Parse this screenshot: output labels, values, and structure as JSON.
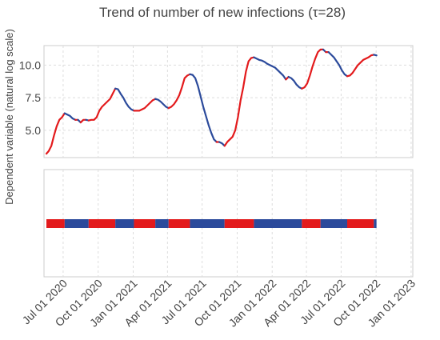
{
  "chart_data": {
    "type": "line",
    "title": "Trend of number of new infections (τ=28)",
    "ylabel": "Dependent variable (natural log scale)",
    "xlabel": "",
    "x_ticks": [
      "2020-07-01",
      "2020-10-01",
      "2021-01-01",
      "2021-04-01",
      "2021-07-01",
      "2021-10-01",
      "2022-01-01",
      "2022-04-01",
      "2022-07-01",
      "2022-10-01",
      "2023-01-01"
    ],
    "x_tick_labels": [
      "Jul 01 2020",
      "Oct 01 2020",
      "Jan 01 2021",
      "Apr 01 2021",
      "Jul 01 2021",
      "Oct 01 2021",
      "Jan 01 2022",
      "Apr 01 2022",
      "Jul 01 2022",
      "Oct 01 2022",
      "Jan 01 2023"
    ],
    "y_ticks": [
      5.0,
      7.5,
      10.0
    ],
    "y_tick_labels": [
      "5.0",
      "7.5",
      "10.0"
    ],
    "xlim": [
      "2020-05-18",
      "2022-12-30"
    ],
    "ylim": [
      2.9,
      11.5
    ],
    "grid": true,
    "colors": {
      "increasing": "#e31a1c",
      "decreasing": "#2b4a9b",
      "grid": "#dddddd",
      "frame": "#cccccc"
    },
    "series": [
      {
        "points": [
          [
            "2020-05-18",
            3.2
          ],
          [
            "2020-05-24",
            3.4
          ],
          [
            "2020-05-31",
            3.8
          ],
          [
            "2020-06-07",
            4.6
          ],
          [
            "2020-06-14",
            5.3
          ],
          [
            "2020-06-21",
            5.8
          ],
          [
            "2020-06-28",
            6.0
          ],
          [
            "2020-07-05",
            6.3
          ],
          [
            "2020-07-12",
            6.2
          ],
          [
            "2020-07-19",
            6.1
          ],
          [
            "2020-07-26",
            5.9
          ],
          [
            "2020-08-02",
            5.8
          ],
          [
            "2020-08-09",
            5.8
          ],
          [
            "2020-08-16",
            5.6
          ],
          [
            "2020-08-23",
            5.8
          ],
          [
            "2020-08-30",
            5.8
          ],
          [
            "2020-09-06",
            5.75
          ],
          [
            "2020-09-13",
            5.8
          ],
          [
            "2020-09-20",
            5.8
          ],
          [
            "2020-09-27",
            6.0
          ],
          [
            "2020-10-04",
            6.5
          ],
          [
            "2020-10-11",
            6.8
          ],
          [
            "2020-10-18",
            7.0
          ],
          [
            "2020-10-25",
            7.2
          ],
          [
            "2020-11-01",
            7.4
          ],
          [
            "2020-11-08",
            7.8
          ],
          [
            "2020-11-15",
            8.2
          ],
          [
            "2020-11-22",
            8.15
          ],
          [
            "2020-11-29",
            7.8
          ],
          [
            "2020-12-06",
            7.5
          ],
          [
            "2020-12-13",
            7.1
          ],
          [
            "2020-12-20",
            6.8
          ],
          [
            "2020-12-27",
            6.6
          ],
          [
            "2021-01-03",
            6.5
          ],
          [
            "2021-01-10",
            6.5
          ],
          [
            "2021-01-17",
            6.5
          ],
          [
            "2021-01-24",
            6.6
          ],
          [
            "2021-01-31",
            6.7
          ],
          [
            "2021-02-07",
            6.9
          ],
          [
            "2021-02-14",
            7.1
          ],
          [
            "2021-02-21",
            7.3
          ],
          [
            "2021-02-28",
            7.4
          ],
          [
            "2021-03-07",
            7.35
          ],
          [
            "2021-03-14",
            7.2
          ],
          [
            "2021-03-21",
            7.0
          ],
          [
            "2021-03-28",
            6.8
          ],
          [
            "2021-04-04",
            6.7
          ],
          [
            "2021-04-11",
            6.8
          ],
          [
            "2021-04-18",
            7.0
          ],
          [
            "2021-04-25",
            7.3
          ],
          [
            "2021-05-02",
            7.7
          ],
          [
            "2021-05-09",
            8.3
          ],
          [
            "2021-05-16",
            9.0
          ],
          [
            "2021-05-23",
            9.2
          ],
          [
            "2021-05-30",
            9.3
          ],
          [
            "2021-06-06",
            9.25
          ],
          [
            "2021-06-13",
            9.0
          ],
          [
            "2021-06-20",
            8.4
          ],
          [
            "2021-06-27",
            7.6
          ],
          [
            "2021-07-04",
            6.8
          ],
          [
            "2021-07-11",
            6.1
          ],
          [
            "2021-07-18",
            5.4
          ],
          [
            "2021-07-25",
            4.8
          ],
          [
            "2021-08-01",
            4.3
          ],
          [
            "2021-08-08",
            4.1
          ],
          [
            "2021-08-15",
            4.1
          ],
          [
            "2021-08-22",
            4.0
          ],
          [
            "2021-08-29",
            3.8
          ],
          [
            "2021-09-05",
            4.1
          ],
          [
            "2021-09-12",
            4.3
          ],
          [
            "2021-09-19",
            4.5
          ],
          [
            "2021-09-26",
            5.0
          ],
          [
            "2021-10-03",
            6.0
          ],
          [
            "2021-10-10",
            7.3
          ],
          [
            "2021-10-17",
            8.3
          ],
          [
            "2021-10-24",
            9.5
          ],
          [
            "2021-10-31",
            10.3
          ],
          [
            "2021-11-07",
            10.55
          ],
          [
            "2021-11-14",
            10.6
          ],
          [
            "2021-11-21",
            10.5
          ],
          [
            "2021-11-28",
            10.4
          ],
          [
            "2021-12-05",
            10.35
          ],
          [
            "2021-12-12",
            10.25
          ],
          [
            "2021-12-19",
            10.1
          ],
          [
            "2021-12-26",
            10.0
          ],
          [
            "2022-01-02",
            9.9
          ],
          [
            "2022-01-09",
            9.8
          ],
          [
            "2022-01-16",
            9.6
          ],
          [
            "2022-01-23",
            9.4
          ],
          [
            "2022-01-30",
            9.2
          ],
          [
            "2022-02-06",
            8.9
          ],
          [
            "2022-02-13",
            9.1
          ],
          [
            "2022-02-20",
            9.0
          ],
          [
            "2022-02-27",
            8.8
          ],
          [
            "2022-03-06",
            8.5
          ],
          [
            "2022-03-13",
            8.3
          ],
          [
            "2022-03-20",
            8.2
          ],
          [
            "2022-03-27",
            8.3
          ],
          [
            "2022-04-03",
            8.6
          ],
          [
            "2022-04-10",
            9.2
          ],
          [
            "2022-04-17",
            9.9
          ],
          [
            "2022-04-24",
            10.5
          ],
          [
            "2022-05-01",
            11.0
          ],
          [
            "2022-05-08",
            11.2
          ],
          [
            "2022-05-15",
            11.2
          ],
          [
            "2022-05-22",
            11.0
          ],
          [
            "2022-05-29",
            11.0
          ],
          [
            "2022-06-05",
            10.8
          ],
          [
            "2022-06-12",
            10.6
          ],
          [
            "2022-06-19",
            10.3
          ],
          [
            "2022-06-26",
            10.0
          ],
          [
            "2022-07-03",
            9.6
          ],
          [
            "2022-07-10",
            9.3
          ],
          [
            "2022-07-17",
            9.15
          ],
          [
            "2022-07-24",
            9.2
          ],
          [
            "2022-07-31",
            9.4
          ],
          [
            "2022-08-07",
            9.7
          ],
          [
            "2022-08-14",
            10.0
          ],
          [
            "2022-08-21",
            10.2
          ],
          [
            "2022-08-28",
            10.4
          ],
          [
            "2022-09-04",
            10.5
          ],
          [
            "2022-09-11",
            10.6
          ],
          [
            "2022-09-18",
            10.75
          ],
          [
            "2022-09-25",
            10.8
          ],
          [
            "2022-10-02",
            10.75
          ]
        ]
      }
    ],
    "regime_bar": {
      "segments": [
        {
          "start": "2020-05-18",
          "end": "2020-07-05",
          "state": "increasing"
        },
        {
          "start": "2020-07-05",
          "end": "2020-09-06",
          "state": "decreasing"
        },
        {
          "start": "2020-09-06",
          "end": "2020-11-15",
          "state": "increasing"
        },
        {
          "start": "2020-11-15",
          "end": "2021-01-03",
          "state": "decreasing"
        },
        {
          "start": "2021-01-03",
          "end": "2021-02-28",
          "state": "increasing"
        },
        {
          "start": "2021-02-28",
          "end": "2021-04-04",
          "state": "decreasing"
        },
        {
          "start": "2021-04-04",
          "end": "2021-05-30",
          "state": "increasing"
        },
        {
          "start": "2021-05-30",
          "end": "2021-08-29",
          "state": "decreasing"
        },
        {
          "start": "2021-08-29",
          "end": "2021-11-14",
          "state": "increasing"
        },
        {
          "start": "2021-11-14",
          "end": "2022-03-20",
          "state": "decreasing"
        },
        {
          "start": "2022-03-20",
          "end": "2022-05-08",
          "state": "increasing"
        },
        {
          "start": "2022-05-08",
          "end": "2022-07-17",
          "state": "decreasing"
        },
        {
          "start": "2022-07-17",
          "end": "2022-09-25",
          "state": "increasing"
        },
        {
          "start": "2022-09-25",
          "end": "2022-10-02",
          "state": "decreasing"
        }
      ]
    }
  }
}
